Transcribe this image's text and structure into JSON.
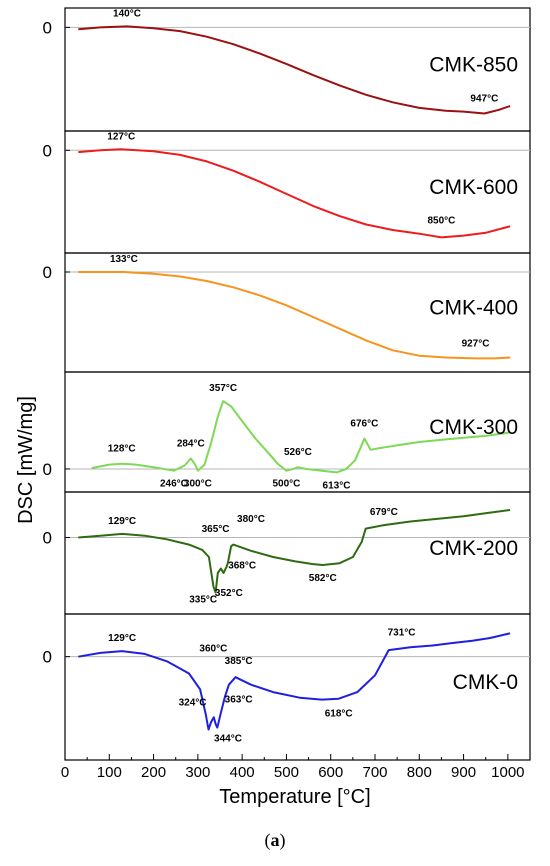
{
  "figure": {
    "ylabel": "DSC [mW/mg]",
    "xlabel": "Temperature [°C]",
    "caption_open": "(",
    "caption_letter": "a",
    "caption_close": ")"
  },
  "chart_data": {
    "type": "line",
    "xlim": [
      0,
      1050
    ],
    "x_ticks": [
      0,
      100,
      200,
      300,
      400,
      500,
      600,
      700,
      800,
      900,
      1000
    ],
    "xlabel": "Temperature [°C]",
    "ylabel": "DSC [mW/mg]",
    "grid": false,
    "panels": [
      {
        "name": "CMK-850",
        "color": "#9b1111",
        "ylim": [
          -1.0,
          0.1
        ],
        "zero_label": "0",
        "points": [
          [
            30,
            -0.02
          ],
          [
            80,
            0.0
          ],
          [
            140,
            0.01
          ],
          [
            200,
            -0.01
          ],
          [
            260,
            -0.04
          ],
          [
            320,
            -0.1
          ],
          [
            380,
            -0.18
          ],
          [
            440,
            -0.28
          ],
          [
            500,
            -0.39
          ],
          [
            560,
            -0.51
          ],
          [
            620,
            -0.62
          ],
          [
            680,
            -0.72
          ],
          [
            740,
            -0.8
          ],
          [
            800,
            -0.86
          ],
          [
            860,
            -0.89
          ],
          [
            900,
            -0.9
          ],
          [
            947,
            -0.92
          ],
          [
            980,
            -0.88
          ],
          [
            1005,
            -0.84
          ]
        ],
        "annotations": [
          {
            "label": "140°C",
            "x": 140,
            "y": 0.01,
            "dy": -10
          },
          {
            "label": "947°C",
            "x": 947,
            "y": -0.92,
            "dy": -12
          }
        ]
      },
      {
        "name": "CMK-600",
        "color": "#ee1c1c",
        "ylim": [
          -1.0,
          0.1
        ],
        "zero_label": "0",
        "points": [
          [
            30,
            -0.02
          ],
          [
            80,
            0.0
          ],
          [
            127,
            0.01
          ],
          [
            200,
            -0.01
          ],
          [
            260,
            -0.05
          ],
          [
            320,
            -0.12
          ],
          [
            380,
            -0.22
          ],
          [
            440,
            -0.34
          ],
          [
            500,
            -0.47
          ],
          [
            560,
            -0.6
          ],
          [
            620,
            -0.71
          ],
          [
            680,
            -0.8
          ],
          [
            740,
            -0.86
          ],
          [
            800,
            -0.9
          ],
          [
            850,
            -0.94
          ],
          [
            900,
            -0.92
          ],
          [
            950,
            -0.89
          ],
          [
            1005,
            -0.82
          ]
        ],
        "annotations": [
          {
            "label": "127°C",
            "x": 127,
            "y": 0.01,
            "dy": -10
          },
          {
            "label": "850°C",
            "x": 850,
            "y": -0.94,
            "dy": -14
          }
        ]
      },
      {
        "name": "CMK-400",
        "color": "#f7941d",
        "ylim": [
          -1.0,
          0.1
        ],
        "zero_label": "0",
        "points": [
          [
            30,
            0.0
          ],
          [
            80,
            0.0
          ],
          [
            133,
            0.0
          ],
          [
            200,
            -0.02
          ],
          [
            260,
            -0.05
          ],
          [
            320,
            -0.1
          ],
          [
            380,
            -0.17
          ],
          [
            440,
            -0.26
          ],
          [
            500,
            -0.37
          ],
          [
            560,
            -0.5
          ],
          [
            620,
            -0.63
          ],
          [
            680,
            -0.76
          ],
          [
            740,
            -0.87
          ],
          [
            800,
            -0.93
          ],
          [
            860,
            -0.95
          ],
          [
            927,
            -0.96
          ],
          [
            970,
            -0.96
          ],
          [
            1005,
            -0.95
          ]
        ],
        "annotations": [
          {
            "label": "133°C",
            "x": 133,
            "y": 0.0,
            "dy": -10
          },
          {
            "label": "927°C",
            "x": 927,
            "y": -0.96,
            "dy": -12
          }
        ]
      },
      {
        "name": "CMK-300",
        "color": "#7ed957",
        "ylim": [
          -0.15,
          1.0
        ],
        "zero_label": "0",
        "points": [
          [
            60,
            0.01
          ],
          [
            100,
            0.05
          ],
          [
            128,
            0.06
          ],
          [
            160,
            0.05
          ],
          [
            200,
            0.02
          ],
          [
            246,
            -0.02
          ],
          [
            270,
            0.04
          ],
          [
            284,
            0.12
          ],
          [
            294,
            0.05
          ],
          [
            300,
            -0.02
          ],
          [
            315,
            0.05
          ],
          [
            330,
            0.3
          ],
          [
            345,
            0.6
          ],
          [
            357,
            0.78
          ],
          [
            375,
            0.72
          ],
          [
            400,
            0.55
          ],
          [
            430,
            0.35
          ],
          [
            460,
            0.18
          ],
          [
            480,
            0.06
          ],
          [
            500,
            -0.02
          ],
          [
            515,
            0.0
          ],
          [
            526,
            0.02
          ],
          [
            545,
            0.0
          ],
          [
            580,
            -0.02
          ],
          [
            613,
            -0.04
          ],
          [
            635,
            0.0
          ],
          [
            655,
            0.1
          ],
          [
            668,
            0.25
          ],
          [
            676,
            0.35
          ],
          [
            690,
            0.22
          ],
          [
            710,
            0.24
          ],
          [
            760,
            0.28
          ],
          [
            800,
            0.31
          ],
          [
            860,
            0.34
          ],
          [
            900,
            0.36
          ],
          [
            950,
            0.38
          ],
          [
            1005,
            0.42
          ]
        ],
        "annotations": [
          {
            "label": "128°C",
            "x": 128,
            "y": 0.06,
            "dy": -12
          },
          {
            "label": "246°C",
            "x": 246,
            "y": -0.02,
            "dy": 16
          },
          {
            "label": "284°C",
            "x": 284,
            "y": 0.12,
            "dy": -12
          },
          {
            "label": "300°C",
            "x": 300,
            "y": -0.02,
            "dy": 16
          },
          {
            "label": "357°C",
            "x": 357,
            "y": 0.78,
            "dy": -10
          },
          {
            "label": "500°C",
            "x": 500,
            "y": -0.02,
            "dy": 16
          },
          {
            "label": "526°C",
            "x": 526,
            "y": 0.02,
            "dy": -12
          },
          {
            "label": "613°C",
            "x": 613,
            "y": -0.04,
            "dy": 16
          },
          {
            "label": "676°C",
            "x": 676,
            "y": 0.35,
            "dy": -12
          }
        ]
      },
      {
        "name": "CMK-200",
        "color": "#2e6b12",
        "ylim": [
          -0.75,
          0.4
        ],
        "zero_label": "0",
        "points": [
          [
            30,
            0.0
          ],
          [
            80,
            0.02
          ],
          [
            129,
            0.04
          ],
          [
            180,
            0.02
          ],
          [
            230,
            -0.02
          ],
          [
            280,
            -0.08
          ],
          [
            310,
            -0.14
          ],
          [
            325,
            -0.22
          ],
          [
            335,
            -0.55
          ],
          [
            340,
            -0.62
          ],
          [
            345,
            -0.4
          ],
          [
            352,
            -0.35
          ],
          [
            358,
            -0.4
          ],
          [
            365,
            -0.33
          ],
          [
            368,
            -0.28
          ],
          [
            375,
            -0.1
          ],
          [
            380,
            -0.08
          ],
          [
            420,
            -0.15
          ],
          [
            470,
            -0.22
          ],
          [
            520,
            -0.27
          ],
          [
            560,
            -0.3
          ],
          [
            582,
            -0.31
          ],
          [
            620,
            -0.29
          ],
          [
            650,
            -0.22
          ],
          [
            670,
            -0.05
          ],
          [
            679,
            0.1
          ],
          [
            720,
            0.14
          ],
          [
            780,
            0.18
          ],
          [
            840,
            0.21
          ],
          [
            900,
            0.24
          ],
          [
            960,
            0.28
          ],
          [
            1005,
            0.31
          ]
        ],
        "annotations": [
          {
            "label": "129°C",
            "x": 129,
            "y": 0.04,
            "dy": -10
          },
          {
            "label": "335°C",
            "x": 312,
            "y": -0.55,
            "dy": 16
          },
          {
            "label": "365°C",
            "x": 340,
            "y": -0.05,
            "dy": -10
          },
          {
            "label": "352°C",
            "x": 370,
            "y": -0.48,
            "dy": 16
          },
          {
            "label": "368°C",
            "x": 400,
            "y": -0.26,
            "dy": 8
          },
          {
            "label": "380°C",
            "x": 420,
            "y": 0.04,
            "dy": -12
          },
          {
            "label": "582°C",
            "x": 582,
            "y": -0.31,
            "dy": 16
          },
          {
            "label": "679°C",
            "x": 720,
            "y": 0.12,
            "dy": -12
          }
        ]
      },
      {
        "name": "CMK-0",
        "color": "#1f1fe0",
        "ylim": [
          -1.0,
          0.35
        ],
        "zero_label": "0",
        "points": [
          [
            30,
            0.0
          ],
          [
            80,
            0.04
          ],
          [
            129,
            0.06
          ],
          [
            180,
            0.03
          ],
          [
            230,
            -0.05
          ],
          [
            280,
            -0.18
          ],
          [
            305,
            -0.35
          ],
          [
            318,
            -0.62
          ],
          [
            324,
            -0.78
          ],
          [
            330,
            -0.7
          ],
          [
            336,
            -0.65
          ],
          [
            340,
            -0.72
          ],
          [
            344,
            -0.76
          ],
          [
            352,
            -0.6
          ],
          [
            360,
            -0.45
          ],
          [
            363,
            -0.4
          ],
          [
            370,
            -0.3
          ],
          [
            385,
            -0.22
          ],
          [
            420,
            -0.3
          ],
          [
            470,
            -0.38
          ],
          [
            530,
            -0.44
          ],
          [
            580,
            -0.46
          ],
          [
            618,
            -0.45
          ],
          [
            660,
            -0.38
          ],
          [
            700,
            -0.2
          ],
          [
            731,
            0.07
          ],
          [
            780,
            0.1
          ],
          [
            830,
            0.12
          ],
          [
            880,
            0.15
          ],
          [
            920,
            0.17
          ],
          [
            960,
            0.2
          ],
          [
            1005,
            0.25
          ]
        ],
        "annotations": [
          {
            "label": "129°C",
            "x": 129,
            "y": 0.06,
            "dy": -10
          },
          {
            "label": "324°C",
            "x": 288,
            "y": -0.48,
            "dy": 4
          },
          {
            "label": "360°C",
            "x": 335,
            "y": -0.05,
            "dy": -10
          },
          {
            "label": "385°C",
            "x": 392,
            "y": -0.12,
            "dy": -4
          },
          {
            "label": "363°C",
            "x": 392,
            "y": -0.45,
            "dy": 4
          },
          {
            "label": "344°C",
            "x": 368,
            "y": -0.76,
            "dy": 14
          },
          {
            "label": "618°C",
            "x": 618,
            "y": -0.45,
            "dy": 18
          },
          {
            "label": "731°C",
            "x": 760,
            "y": 0.1,
            "dy": -12
          }
        ]
      }
    ]
  }
}
